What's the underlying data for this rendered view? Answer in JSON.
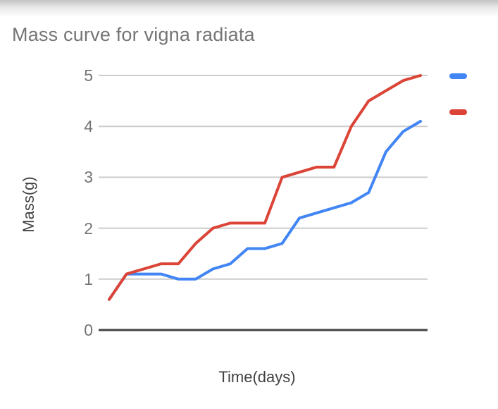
{
  "title": "Mass curve for vigna radiata",
  "chart_data": {
    "type": "line",
    "title": "Mass curve for vigna radiata",
    "xlabel": "Time(days)",
    "ylabel": "Mass(g)",
    "x": [
      1,
      2,
      3,
      4,
      5,
      6,
      7,
      8,
      9,
      10,
      11,
      12,
      13,
      14,
      15,
      16,
      17,
      18,
      19
    ],
    "series": [
      {
        "name": "",
        "color": "#4285f4",
        "values": [
          0.6,
          1.1,
          1.1,
          1.1,
          1.0,
          1.0,
          1.2,
          1.3,
          1.6,
          1.6,
          1.7,
          2.2,
          2.3,
          2.4,
          2.5,
          2.7,
          3.5,
          3.9,
          4.1
        ]
      },
      {
        "name": "",
        "color": "#db4437",
        "values": [
          0.6,
          1.1,
          1.2,
          1.3,
          1.3,
          1.7,
          2.0,
          2.1,
          2.1,
          2.1,
          3.0,
          3.1,
          3.2,
          3.2,
          4.0,
          4.5,
          4.7,
          4.9,
          5.0
        ]
      }
    ],
    "ylim": [
      0,
      5
    ],
    "yticks": [
      "0",
      "1",
      "2",
      "3",
      "4",
      "5"
    ],
    "x_tick_labels": "none",
    "grid": true,
    "legend_position": "right"
  },
  "colors": {
    "series_blue": "#4285f4",
    "series_red": "#db4437",
    "gridline": "#cccccc",
    "axis_line": "#424242",
    "tick_label": "#757575",
    "title_text": "#757575",
    "axis_title": "#424242"
  }
}
